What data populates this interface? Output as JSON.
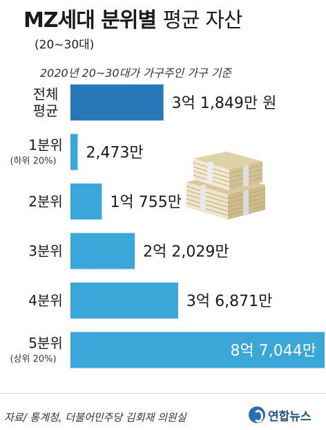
{
  "header": {
    "title_bold": "MZ세대 분위별",
    "title_light": "평균 자산",
    "subtitle": "(20~30대)",
    "note": "2020년 20~30대가 가구주인 가구 기준"
  },
  "chart_data": {
    "type": "bar",
    "orientation": "horizontal",
    "unit": "만 원",
    "categories": [
      {
        "label": [
          "전체",
          "평균"
        ],
        "sub": ""
      },
      {
        "label": [
          "1분위"
        ],
        "sub": "(하위 20%)"
      },
      {
        "label": [
          "2분위"
        ],
        "sub": ""
      },
      {
        "label": [
          "3분위"
        ],
        "sub": ""
      },
      {
        "label": [
          "4분위"
        ],
        "sub": ""
      },
      {
        "label": [
          "5분위"
        ],
        "sub": "(상위 20%)"
      }
    ],
    "values": [
      31849,
      2473,
      10755,
      22029,
      36871,
      87044
    ],
    "value_labels": [
      "3억 1,849만 원",
      "2,473만",
      "1억 755만",
      "2억 2,029만",
      "3억 6,871만",
      "8억 7,044만"
    ],
    "colors": {
      "average": "#2878b8",
      "quintile": "#3ba6d8",
      "label_inside": "#ffffff",
      "label": "#1a1a1a"
    }
  },
  "footer": {
    "source": "자료/ 통계청, 더불어민주당 김회재 의원실",
    "logo_text": "연합뉴스"
  }
}
